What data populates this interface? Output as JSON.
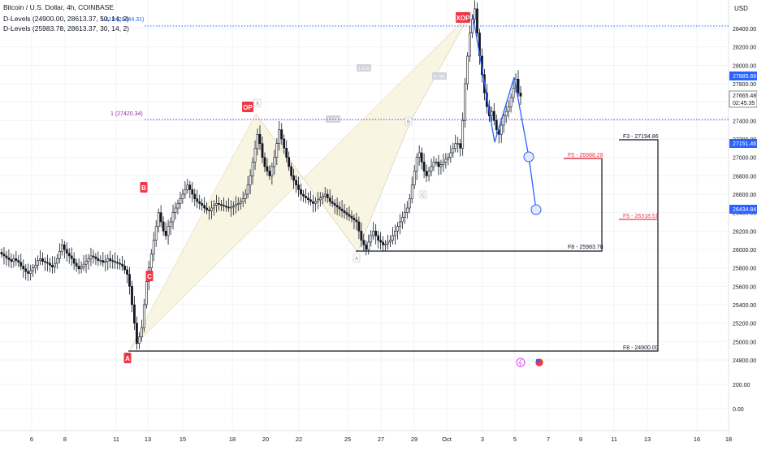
{
  "header": {
    "symbol_line": "Bitcoin / U.S. Dollar, 4h, COINBASE",
    "indicator1": "D-Levels (24900.00, 28613.37, 50, 14, 2)",
    "indicator2": "D-Levels (25983.78, 28613.37, 30, 14, 2)"
  },
  "currency": "USD",
  "colors": {
    "up": "#131722",
    "down": "#131722",
    "fib_line": "#2962ff",
    "purple_line": "#9c27b0",
    "pattern_fill": "#f7f3dc",
    "label_red": "#f23645",
    "projection": "#2962ff"
  },
  "chart_data": {
    "type": "candlestick",
    "y_axis_ticks": [
      "28400.00",
      "28200.00",
      "28000.00",
      "27800.00",
      "27600.00",
      "27400.00",
      "27200.00",
      "27000.00",
      "26800.00",
      "26600.00",
      "26400.00",
      "26200.00",
      "26000.00",
      "25800.00",
      "25600.00",
      "25400.00",
      "25200.00",
      "25000.00",
      "24800.00",
      "200.00",
      "0.00"
    ],
    "x_axis_ticks": [
      "6",
      "8",
      "11",
      "13",
      "15",
      "18",
      "20",
      "22",
      "25",
      "27",
      "29",
      "Oct",
      "3",
      "5",
      "7",
      "9",
      "11",
      "13",
      "16",
      "18"
    ],
    "price_tags": [
      {
        "label": "27885.69",
        "kind": "blue"
      },
      {
        "label": "27665.48",
        "kind": "current"
      },
      {
        "label": "02:45:35",
        "kind": "timer"
      },
      {
        "label": "27151.46",
        "kind": "blue"
      },
      {
        "label": "26434.84",
        "kind": "blue"
      }
    ],
    "levels": [
      {
        "label": "1.618 (28444.31)",
        "value": 28444.31
      },
      {
        "label": "1 (27420.34)",
        "value": 27420.34
      },
      {
        "label": "F3 - 27194.86",
        "value": 27194.86
      },
      {
        "label": "F5 - 26988.28",
        "value": 26988.28
      },
      {
        "label": "F5 - 26318.51",
        "value": 26318.51
      },
      {
        "label": "F8 - 25983.78",
        "value": 25983.78
      },
      {
        "label": "F8 - 24900.00",
        "value": 24900.0
      }
    ],
    "pattern_points": [
      {
        "label": "X",
        "value": 28613.37
      },
      {
        "label": "A",
        "value": 25983.78
      },
      {
        "label": "B",
        "value": 27300
      },
      {
        "label": "C",
        "value": 26650
      },
      {
        "label": "D",
        "value": 28613.37
      }
    ],
    "pattern_ratios": [
      "1.618",
      "1.618",
      "0.796"
    ],
    "swing_labels": [
      {
        "label": "A",
        "value": 24900
      },
      {
        "label": "B",
        "value": 26650
      },
      {
        "label": "C",
        "value": 25850
      },
      {
        "label": "OP",
        "value": 27480
      },
      {
        "label": "XOP",
        "value": 28600
      }
    ],
    "close_series": [
      25950,
      25930,
      25910,
      25890,
      25870,
      25900,
      25880,
      25860,
      25820,
      25790,
      25760,
      25740,
      25770,
      25800,
      25830,
      25880,
      25900,
      25870,
      25860,
      25850,
      25830,
      25810,
      25850,
      25900,
      25980,
      26050,
      26000,
      25960,
      25930,
      25900,
      25850,
      25820,
      25790,
      25810,
      25840,
      25870,
      25900,
      25930,
      25920,
      25900,
      25880,
      25880,
      25860,
      25870,
      25900,
      25880,
      25870,
      25860,
      25850,
      25840,
      25820,
      25780,
      25730,
      25600,
      25400,
      25200,
      24980,
      25050,
      25150,
      25400,
      25650,
      25800,
      25950,
      26100,
      26250,
      26400,
      26300,
      26200,
      26150,
      26250,
      26300,
      26400,
      26450,
      26500,
      26550,
      26600,
      26650,
      26700,
      26650,
      26600,
      26550,
      26520,
      26500,
      26480,
      26450,
      26430,
      26420,
      26450,
      26480,
      26500,
      26490,
      26480,
      26470,
      26460,
      26450,
      26460,
      26470,
      26490,
      26500,
      26520,
      26550,
      26600,
      26700,
      26800,
      26950,
      27100,
      27250,
      27150,
      27000,
      26900,
      26850,
      26800,
      26900,
      27000,
      27150,
      27300,
      27200,
      27100,
      27000,
      26900,
      26800,
      26750,
      26700,
      26650,
      26600,
      26580,
      26560,
      26540,
      26520,
      26500,
      26520,
      26540,
      26560,
      26580,
      26600,
      26560,
      26520,
      26500,
      26480,
      26460,
      26440,
      26420,
      26400,
      26380,
      26360,
      26340,
      26320,
      26300,
      26200,
      26100,
      26050,
      26000,
      26080,
      26150,
      26200,
      26150,
      26100,
      26080,
      26050,
      26060,
      26080,
      26100,
      26150,
      26200,
      26250,
      26300,
      26350,
      26400,
      26450,
      26550,
      26700,
      26850,
      27000,
      27050,
      26950,
      26850,
      26800,
      26850,
      26900,
      26950,
      26950,
      26900,
      26920,
      26950,
      26980,
      27000,
      27050,
      27100,
      27150,
      27150,
      27100,
      27400,
      27800,
      28100,
      28350,
      28500,
      28613,
      28350,
      28100,
      27900,
      27700,
      27550,
      27450,
      27500,
      27400,
      27300,
      27250,
      27350,
      27450,
      27500,
      27550,
      27650,
      27750,
      27850,
      27700,
      27665
    ]
  }
}
